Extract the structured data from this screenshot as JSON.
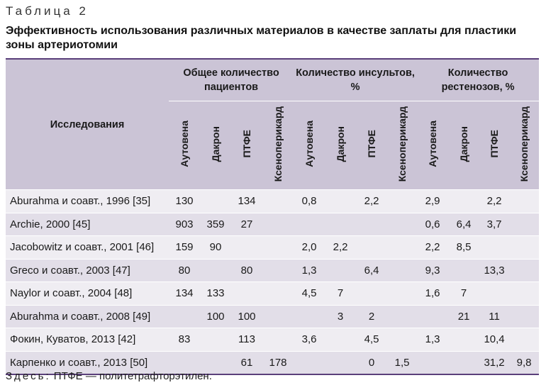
{
  "caption": "Таблица 2",
  "title": "Эффективность использования различных материалов в качестве заплаты для пластики зоны артериотомии",
  "table": {
    "study_header": "Исследования",
    "groups": [
      "Общее количество пациентов",
      "Количество инсультов, %",
      "Количество рестенозов, %"
    ],
    "subheaders": [
      "Аутовена",
      "Дакрон",
      "ПТФЕ",
      "Ксеноперикард"
    ],
    "rows": [
      {
        "name": "Aburahma и соавт., 1996 [35]",
        "values": [
          "130",
          "",
          "134",
          "",
          "0,8",
          "",
          "2,2",
          "",
          "2,9",
          "",
          "2,2",
          ""
        ]
      },
      {
        "name": "Archie, 2000 [45]",
        "values": [
          "903",
          "359",
          "27",
          "",
          "",
          "",
          "",
          "",
          "0,6",
          "6,4",
          "3,7",
          ""
        ]
      },
      {
        "name": "Jacobowitz и соавт., 2001 [46]",
        "values": [
          "159",
          "90",
          "",
          "",
          "2,0",
          "2,2",
          "",
          "",
          "2,2",
          "8,5",
          "",
          ""
        ]
      },
      {
        "name": "Greco и соавт., 2003 [47]",
        "values": [
          "80",
          "",
          "80",
          "",
          "1,3",
          "",
          "6,4",
          "",
          "9,3",
          "",
          "13,3",
          ""
        ]
      },
      {
        "name": "Naylor и соавт., 2004 [48]",
        "values": [
          "134",
          "133",
          "",
          "",
          "4,5",
          "7",
          "",
          "",
          "1,6",
          "7",
          "",
          ""
        ]
      },
      {
        "name": "Aburahma и соавт., 2008 [49]",
        "values": [
          "",
          "100",
          "100",
          "",
          "",
          "3",
          "2",
          "",
          "",
          "21",
          "11",
          ""
        ]
      },
      {
        "name": "Фокин, Куватов, 2013 [42]",
        "values": [
          "83",
          "",
          "113",
          "",
          "3,6",
          "",
          "4,5",
          "",
          "1,3",
          "",
          "10,4",
          ""
        ]
      },
      {
        "name": "Карпенко и соавт., 2013 [50]",
        "values": [
          "",
          "",
          "61",
          "178",
          "",
          "",
          "0",
          "1,5",
          "",
          "",
          "31,2",
          "9,8"
        ]
      }
    ]
  },
  "note_prefix": "Здесь:",
  "note_text": " ПТФЕ — политетрафторэтилен."
}
